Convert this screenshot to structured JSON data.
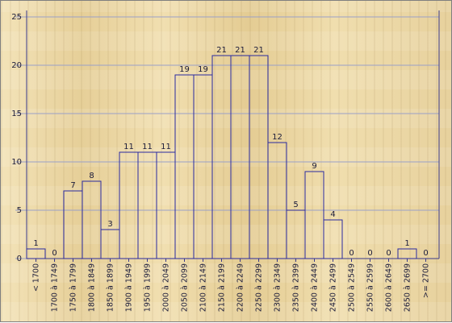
{
  "chart_data": {
    "type": "bar",
    "title": "",
    "xlabel": "",
    "ylabel": "",
    "ylim": [
      0,
      25
    ],
    "yticks": [
      0,
      5,
      10,
      15,
      20,
      25
    ],
    "grid": true,
    "categories": [
      "< 1700",
      "1700 à 1749",
      "1750 à 1799",
      "1800 à 1849",
      "1850 à 1899",
      "1900 à 1949",
      "1950 à 1999",
      "2000 à 2049",
      "2050 à 2099",
      "2100 à 2149",
      "2150 à 2199",
      "2200 à 2249",
      "2250 à 2299",
      "2300 à 2349",
      "2350 à 2399",
      "2400 à 2449",
      "2450 à 2499",
      "2500 à 2549",
      "2550 à 2599",
      "2600 à 2649",
      "2650 à 2699",
      ">= 2700"
    ],
    "values": [
      1,
      0,
      7,
      8,
      3,
      11,
      11,
      11,
      19,
      19,
      21,
      21,
      21,
      12,
      5,
      9,
      4,
      0,
      0,
      0,
      1,
      0
    ],
    "colors": {
      "bar_stroke": "#2a2aa0",
      "grid": "#9aa0c8",
      "axis": "#3a3a8a",
      "text": "#1b1b3a"
    }
  }
}
